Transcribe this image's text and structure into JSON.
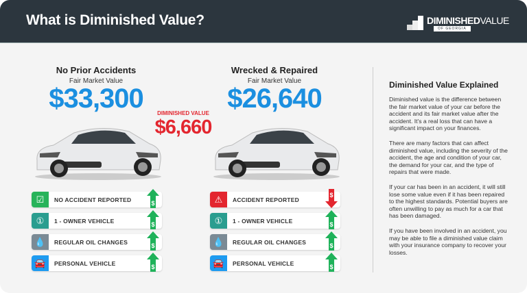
{
  "header": {
    "title": "What is Diminished Value?",
    "logo": {
      "name_bold": "DIMINISHED",
      "name_light": "VALUE",
      "sub": "OF GEORGIA"
    }
  },
  "left": {
    "heading": "No Prior Accidents",
    "label": "Fair Market Value",
    "price": "$33,300",
    "factors": [
      {
        "text": "NO ACCIDENT REPORTED",
        "icon": "checkbox-icon",
        "color": "#27b35a",
        "trend": "up"
      },
      {
        "text": "1 - OWNER VEHICLE",
        "icon": "number-one-icon",
        "color": "#2a9d8f",
        "trend": "up"
      },
      {
        "text": "REGULAR OIL CHANGES",
        "icon": "oil-drop-icon",
        "color": "#7a8a95",
        "trend": "up"
      },
      {
        "text": "PERSONAL VEHICLE",
        "icon": "car-icon",
        "color": "#1e9bf0",
        "trend": "up"
      }
    ]
  },
  "right": {
    "heading": "Wrecked & Repaired",
    "label": "Fair Market Value",
    "price": "$26,640",
    "factors": [
      {
        "text": "ACCIDENT REPORTED",
        "icon": "warning-icon",
        "color": "#e3262f",
        "trend": "down"
      },
      {
        "text": "1 - OWNER VEHICLE",
        "icon": "number-one-icon",
        "color": "#2a9d8f",
        "trend": "up"
      },
      {
        "text": "REGULAR OIL CHANGES",
        "icon": "oil-drop-icon",
        "color": "#7a8a95",
        "trend": "up"
      },
      {
        "text": "PERSONAL VEHICLE",
        "icon": "car-icon",
        "color": "#1e9bf0",
        "trend": "up"
      }
    ]
  },
  "diminished": {
    "label": "DIMINISHED VALUE",
    "amount": "$6,660"
  },
  "sidebar": {
    "title": "Diminished Value Explained",
    "paragraphs": [
      "Diminished value is the difference between the fair market value of your car before the accident and its fair market value after the accident. It's a real loss that can have a significant impact on your finances.",
      "There are many factors that can affect diminished value, including the severity of the accident, the age and condition of your car, the demand for your car, and the type of repairs that were made.",
      "If your car has been in an accident, it will still lose some value even if it has been repaired to the highest standards. Potential buyers are often unwilling to pay as much for a car that has been damaged.",
      "If you have been involved in an accident, you may be able to file a diminished value claim with your insurance company to recover your losses."
    ]
  }
}
